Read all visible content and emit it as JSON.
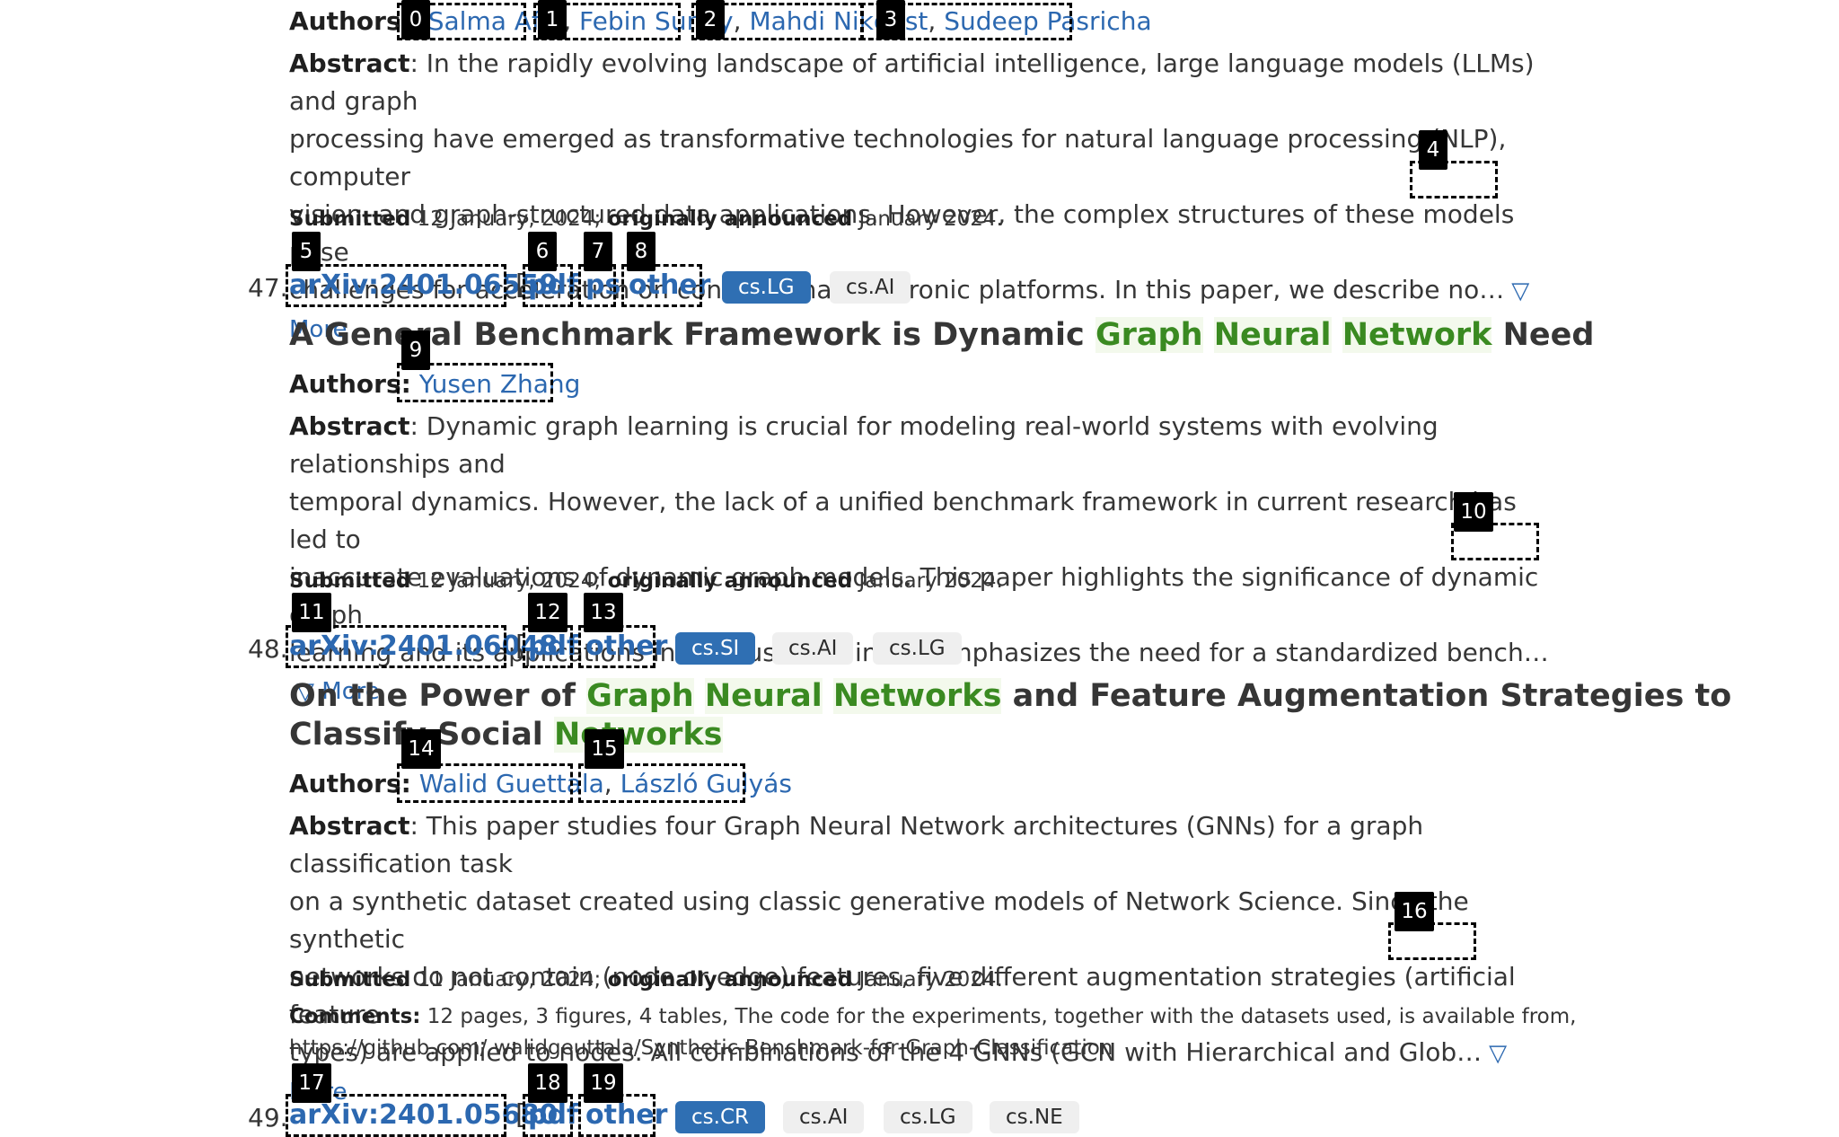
{
  "entries": [
    {
      "authors_label": "Authors:",
      "authors": [
        "Salma Afifi",
        "Febin Sunny",
        "Mahdi Nikdast",
        "Sudeep Pasricha"
      ],
      "abstract_label": "Abstract",
      "abstract_lines": [
        ": In the rapidly evolving landscape of artificial intelligence, large language models (LLMs) and graph",
        "processing have emerged as transformative technologies for natural language processing (NLP), computer",
        "vision, and graph-structured data applications. However, the complex structures of these models pose",
        "challenges for acceleration on conventional electronic platforms. In this paper, we describe no…"
      ],
      "more_label": "▽ More",
      "submitted_label": "Submitted",
      "submitted_date": "12 January, 2024;",
      "announced_label": "originally announced",
      "announced_date": "January 2024."
    },
    {
      "number": "47.",
      "arxiv_id": "arXiv:2401.06559",
      "links": [
        "pdf",
        "ps",
        "other"
      ],
      "tags": [
        {
          "label": "cs.LG",
          "primary": true
        },
        {
          "label": "cs.AI",
          "primary": false
        }
      ],
      "title_parts": [
        {
          "text": "A General Benchmark Framework is Dynamic ",
          "hl": false
        },
        {
          "text": "Graph",
          "hl": true
        },
        {
          "text": " ",
          "hl": false
        },
        {
          "text": "Neural",
          "hl": true
        },
        {
          "text": " ",
          "hl": false
        },
        {
          "text": "Network",
          "hl": true
        },
        {
          "text": " Need",
          "hl": false
        }
      ],
      "authors_label": "Authors:",
      "authors": [
        "Yusen Zhang"
      ],
      "abstract_label": "Abstract",
      "abstract_lines": [
        ": Dynamic graph learning is crucial for modeling real-world systems with evolving relationships and",
        "temporal dynamics. However, the lack of a unified benchmark framework in current research has led to",
        "inaccurate evaluations of dynamic graph models. This paper highlights the significance of dynamic graph",
        "learning and its applications in various domains. It emphasizes the need for a standardized bench…"
      ],
      "more_label": "▽ More",
      "submitted_label": "Submitted",
      "submitted_date": "12 January, 2024;",
      "announced_label": "originally announced",
      "announced_date": "January 2024."
    },
    {
      "number": "48.",
      "arxiv_id": "arXiv:2401.06048",
      "links": [
        "pdf",
        "other"
      ],
      "tags": [
        {
          "label": "cs.SI",
          "primary": true
        },
        {
          "label": "cs.AI",
          "primary": false
        },
        {
          "label": "cs.LG",
          "primary": false
        }
      ],
      "title_line1": [
        {
          "text": "On the Power of ",
          "hl": false
        },
        {
          "text": "Graph",
          "hl": true
        },
        {
          "text": " ",
          "hl": false
        },
        {
          "text": "Neural",
          "hl": true
        },
        {
          "text": " ",
          "hl": false
        },
        {
          "text": "Networks",
          "hl": true
        },
        {
          "text": " and Feature Augmentation Strategies to",
          "hl": false
        }
      ],
      "title_line2": [
        {
          "text": "Classify Social ",
          "hl": false
        },
        {
          "text": "Networks",
          "hl": true
        }
      ],
      "authors_label": "Authors:",
      "authors": [
        "Walid Guettala",
        "László Gulyás"
      ],
      "abstract_label": "Abstract",
      "abstract_lines": [
        ": This paper studies four Graph Neural Network architectures (GNNs) for a graph classification task",
        "on a synthetic dataset created using classic generative models of Network Science. Since the synthetic",
        "networks do not contain (node or edge) features, five different augmentation strategies (artificial feature",
        "types) are applied to nodes. All combinations of the 4 GNNs (GCN with Hierarchical and Glob…"
      ],
      "more_label": "▽ More",
      "submitted_label": "Submitted",
      "submitted_date": "11 January, 2024;",
      "announced_label": "originally announced",
      "announced_date": "January 2024.",
      "comments_label": "Comments:",
      "comments_line1": "12 pages, 3 figures, 4 tables, The code for the experiments, together with the datasets used, is available from,",
      "comments_line2": "https://github.com/ walidgeuttala/Synthetic-Benchmark-for-Graph-Classification"
    },
    {
      "number": "49.",
      "arxiv_id": "arXiv:2401.05680",
      "links": [
        "pdf",
        "other"
      ],
      "tags": [
        {
          "label": "cs.CR",
          "primary": true
        },
        {
          "label": "cs.AI",
          "primary": false
        },
        {
          "label": "cs.LG",
          "primary": false
        },
        {
          "label": "cs.NE",
          "primary": false
        }
      ]
    }
  ],
  "badges": [
    "0",
    "1",
    "2",
    "3",
    "4",
    "5",
    "6",
    "7",
    "8",
    "9",
    "10",
    "11",
    "12",
    "13",
    "14",
    "15",
    "16",
    "17",
    "18",
    "19"
  ]
}
